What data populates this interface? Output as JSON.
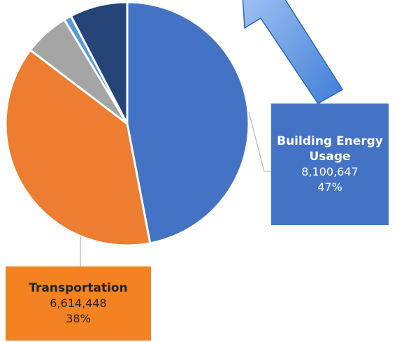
{
  "chart_data": {
    "type": "pie",
    "categories": [
      "Building Energy Usage",
      "Transportation",
      null,
      null,
      null
    ],
    "values": [
      8100647,
      6614448,
      1034000,
      172000,
      1320000
    ],
    "value_labels": [
      "8,100,647",
      "6,614,448",
      null,
      null,
      null
    ],
    "percents": [
      47,
      38,
      null,
      null,
      null
    ],
    "percent_labels": [
      "47%",
      "38%",
      null,
      null,
      null
    ],
    "colors": [
      "#4472c4",
      "#ed7d31",
      "#a5a5a5",
      "#5b9bd5",
      "#264478"
    ]
  }
}
